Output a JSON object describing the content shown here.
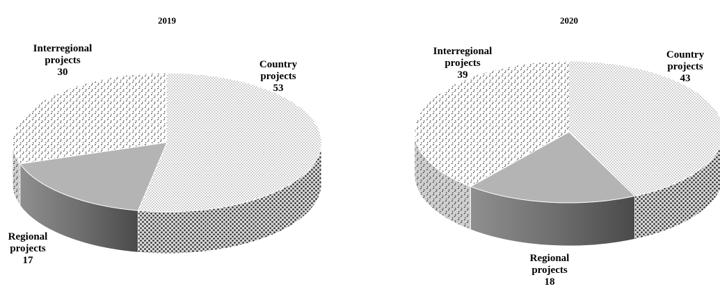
{
  "chart_data": [
    {
      "type": "pie",
      "title": "2019",
      "legend": "none",
      "slices": [
        {
          "label_lines": [
            "Country",
            "projects"
          ],
          "value": 53,
          "value_text": "53",
          "pattern": "dots-fine"
        },
        {
          "label_lines": [
            "Regional",
            "projects"
          ],
          "value": 17,
          "value_text": "17",
          "pattern": "solid-gray"
        },
        {
          "label_lines": [
            "Interregional",
            "projects"
          ],
          "value": 30,
          "value_text": "30",
          "pattern": "dashes"
        }
      ]
    },
    {
      "type": "pie",
      "title": "2020",
      "legend": "none",
      "slices": [
        {
          "label_lines": [
            "Country",
            "projects"
          ],
          "value": 43,
          "value_text": "43",
          "pattern": "dots-fine"
        },
        {
          "label_lines": [
            "Regional",
            "projects"
          ],
          "value": 18,
          "value_text": "18",
          "pattern": "solid-gray"
        },
        {
          "label_lines": [
            "Interregional",
            "projects"
          ],
          "value": 39,
          "value_text": "39",
          "pattern": "dashes"
        }
      ]
    }
  ]
}
